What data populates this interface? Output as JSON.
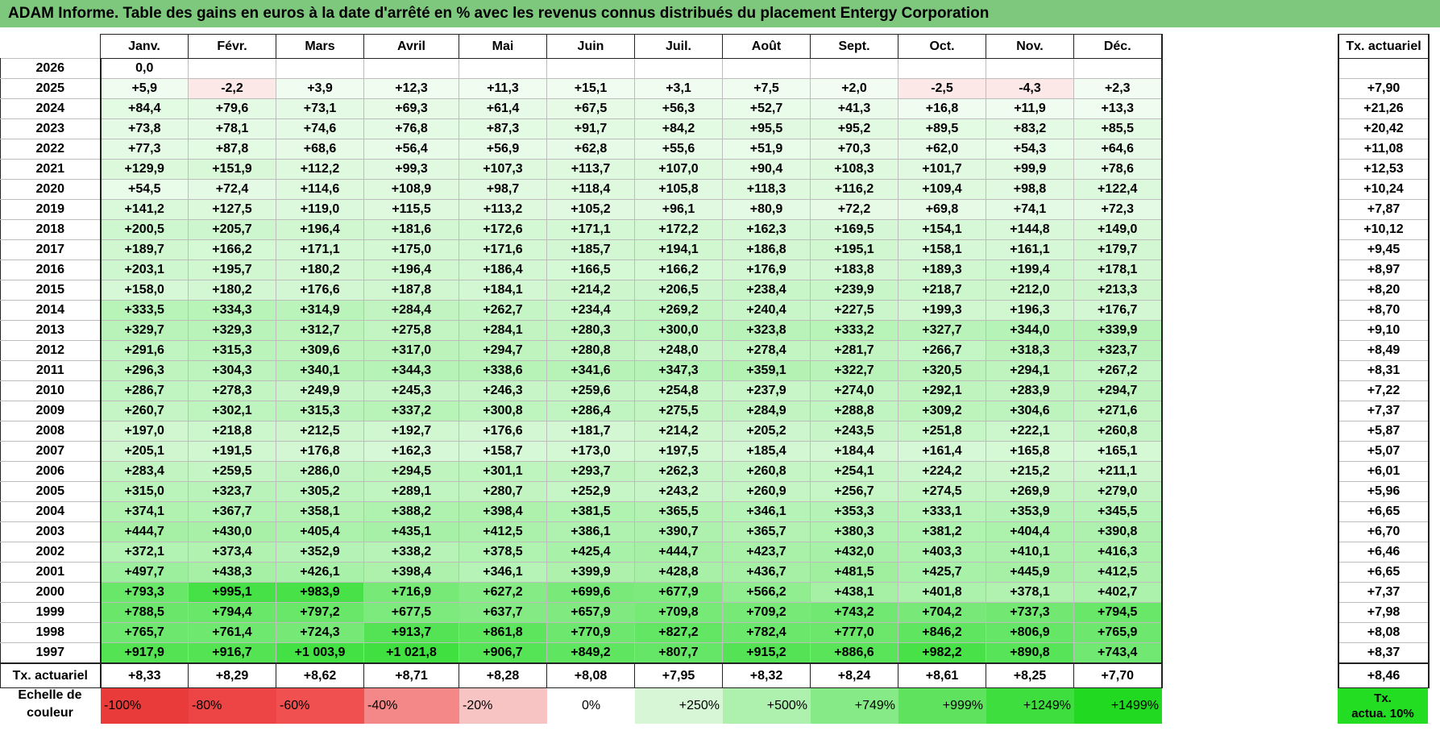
{
  "title": "ADAM Informe. Table des gains en euros à la date d'arrêté en % avec les revenus connus distribués du placement Entergy Corporation",
  "months": [
    "Janv.",
    "Févr.",
    "Mars",
    "Avril",
    "Mai",
    "Juin",
    "Juil.",
    "Août",
    "Sept.",
    "Oct.",
    "Nov.",
    "Déc."
  ],
  "tx_header": "Tx. actuariel",
  "rows": [
    {
      "year": "2026",
      "values": [
        "0,0",
        "",
        "",
        "",
        "",
        "",
        "",
        "",
        "",
        "",
        "",
        ""
      ],
      "tx": ""
    },
    {
      "year": "2025",
      "values": [
        "+5,9",
        "-2,2",
        "+3,9",
        "+12,3",
        "+11,3",
        "+15,1",
        "+3,1",
        "+7,5",
        "+2,0",
        "-2,5",
        "-4,3",
        "+2,3"
      ],
      "tx": "+7,90"
    },
    {
      "year": "2024",
      "values": [
        "+84,4",
        "+79,6",
        "+73,1",
        "+69,3",
        "+61,4",
        "+67,5",
        "+56,3",
        "+52,7",
        "+41,3",
        "+16,8",
        "+11,9",
        "+13,3"
      ],
      "tx": "+21,26"
    },
    {
      "year": "2023",
      "values": [
        "+73,8",
        "+78,1",
        "+74,6",
        "+76,8",
        "+87,3",
        "+91,7",
        "+84,2",
        "+95,5",
        "+95,2",
        "+89,5",
        "+83,2",
        "+85,5"
      ],
      "tx": "+20,42"
    },
    {
      "year": "2022",
      "values": [
        "+77,3",
        "+87,8",
        "+68,6",
        "+56,4",
        "+56,9",
        "+62,8",
        "+55,6",
        "+51,9",
        "+70,3",
        "+62,0",
        "+54,3",
        "+64,6"
      ],
      "tx": "+11,08"
    },
    {
      "year": "2021",
      "values": [
        "+129,9",
        "+151,9",
        "+112,2",
        "+99,3",
        "+107,3",
        "+113,7",
        "+107,0",
        "+90,4",
        "+108,3",
        "+101,7",
        "+99,9",
        "+78,6"
      ],
      "tx": "+12,53"
    },
    {
      "year": "2020",
      "values": [
        "+54,5",
        "+72,4",
        "+114,6",
        "+108,9",
        "+98,7",
        "+118,4",
        "+105,8",
        "+118,3",
        "+116,2",
        "+109,4",
        "+98,8",
        "+122,4"
      ],
      "tx": "+10,24"
    },
    {
      "year": "2019",
      "values": [
        "+141,2",
        "+127,5",
        "+119,0",
        "+115,5",
        "+113,2",
        "+105,2",
        "+96,1",
        "+80,9",
        "+72,2",
        "+69,8",
        "+74,1",
        "+72,3"
      ],
      "tx": "+7,87"
    },
    {
      "year": "2018",
      "values": [
        "+200,5",
        "+205,7",
        "+196,4",
        "+181,6",
        "+172,6",
        "+171,1",
        "+172,2",
        "+162,3",
        "+169,5",
        "+154,1",
        "+144,8",
        "+149,0"
      ],
      "tx": "+10,12"
    },
    {
      "year": "2017",
      "values": [
        "+189,7",
        "+166,2",
        "+171,1",
        "+175,0",
        "+171,6",
        "+185,7",
        "+194,1",
        "+186,8",
        "+195,1",
        "+158,1",
        "+161,1",
        "+179,7"
      ],
      "tx": "+9,45"
    },
    {
      "year": "2016",
      "values": [
        "+203,1",
        "+195,7",
        "+180,2",
        "+196,4",
        "+186,4",
        "+166,5",
        "+166,2",
        "+176,9",
        "+183,8",
        "+189,3",
        "+199,4",
        "+178,1"
      ],
      "tx": "+8,97"
    },
    {
      "year": "2015",
      "values": [
        "+158,0",
        "+180,2",
        "+176,6",
        "+187,8",
        "+184,1",
        "+214,2",
        "+206,5",
        "+238,4",
        "+239,9",
        "+218,7",
        "+212,0",
        "+213,3"
      ],
      "tx": "+8,20"
    },
    {
      "year": "2014",
      "values": [
        "+333,5",
        "+334,3",
        "+314,9",
        "+284,4",
        "+262,7",
        "+234,4",
        "+269,2",
        "+240,4",
        "+227,5",
        "+199,3",
        "+196,3",
        "+176,7"
      ],
      "tx": "+8,70"
    },
    {
      "year": "2013",
      "values": [
        "+329,7",
        "+329,3",
        "+312,7",
        "+275,8",
        "+284,1",
        "+280,3",
        "+300,0",
        "+323,8",
        "+333,2",
        "+327,7",
        "+344,0",
        "+339,9"
      ],
      "tx": "+9,10"
    },
    {
      "year": "2012",
      "values": [
        "+291,6",
        "+315,3",
        "+309,6",
        "+317,0",
        "+294,7",
        "+280,8",
        "+248,0",
        "+278,4",
        "+281,7",
        "+266,7",
        "+318,3",
        "+323,7"
      ],
      "tx": "+8,49"
    },
    {
      "year": "2011",
      "values": [
        "+296,3",
        "+304,3",
        "+340,1",
        "+344,3",
        "+338,6",
        "+341,6",
        "+347,3",
        "+359,1",
        "+322,7",
        "+320,5",
        "+294,1",
        "+267,2"
      ],
      "tx": "+8,31"
    },
    {
      "year": "2010",
      "values": [
        "+286,7",
        "+278,3",
        "+249,9",
        "+245,3",
        "+246,3",
        "+259,6",
        "+254,8",
        "+237,9",
        "+274,0",
        "+292,1",
        "+283,9",
        "+294,7"
      ],
      "tx": "+7,22"
    },
    {
      "year": "2009",
      "values": [
        "+260,7",
        "+302,1",
        "+315,3",
        "+337,2",
        "+300,8",
        "+286,4",
        "+275,5",
        "+284,9",
        "+288,8",
        "+309,2",
        "+304,6",
        "+271,6"
      ],
      "tx": "+7,37"
    },
    {
      "year": "2008",
      "values": [
        "+197,0",
        "+218,8",
        "+212,5",
        "+192,7",
        "+176,6",
        "+181,7",
        "+214,2",
        "+205,2",
        "+243,5",
        "+251,8",
        "+222,1",
        "+260,8"
      ],
      "tx": "+5,87"
    },
    {
      "year": "2007",
      "values": [
        "+205,1",
        "+191,5",
        "+176,8",
        "+162,3",
        "+158,7",
        "+173,0",
        "+197,5",
        "+185,4",
        "+184,4",
        "+161,4",
        "+165,8",
        "+165,1"
      ],
      "tx": "+5,07"
    },
    {
      "year": "2006",
      "values": [
        "+283,4",
        "+259,5",
        "+286,0",
        "+294,5",
        "+301,1",
        "+293,7",
        "+262,3",
        "+260,8",
        "+254,1",
        "+224,2",
        "+215,2",
        "+211,1"
      ],
      "tx": "+6,01"
    },
    {
      "year": "2005",
      "values": [
        "+315,0",
        "+323,7",
        "+305,2",
        "+289,1",
        "+280,7",
        "+252,9",
        "+243,2",
        "+260,9",
        "+256,7",
        "+274,5",
        "+269,9",
        "+279,0"
      ],
      "tx": "+5,96"
    },
    {
      "year": "2004",
      "values": [
        "+374,1",
        "+367,7",
        "+358,1",
        "+388,2",
        "+398,4",
        "+381,5",
        "+365,5",
        "+346,1",
        "+353,3",
        "+333,1",
        "+353,9",
        "+345,5"
      ],
      "tx": "+6,65"
    },
    {
      "year": "2003",
      "values": [
        "+444,7",
        "+430,0",
        "+405,4",
        "+435,1",
        "+412,5",
        "+386,1",
        "+390,7",
        "+365,7",
        "+380,3",
        "+381,2",
        "+404,4",
        "+390,8"
      ],
      "tx": "+6,70"
    },
    {
      "year": "2002",
      "values": [
        "+372,1",
        "+373,4",
        "+352,9",
        "+338,2",
        "+378,5",
        "+425,4",
        "+444,7",
        "+423,7",
        "+432,0",
        "+403,3",
        "+410,1",
        "+416,3"
      ],
      "tx": "+6,46"
    },
    {
      "year": "2001",
      "values": [
        "+497,7",
        "+438,3",
        "+426,1",
        "+398,4",
        "+346,1",
        "+399,9",
        "+428,8",
        "+436,7",
        "+481,5",
        "+425,7",
        "+445,9",
        "+412,5"
      ],
      "tx": "+6,65"
    },
    {
      "year": "2000",
      "values": [
        "+793,3",
        "+995,1",
        "+983,9",
        "+716,9",
        "+627,2",
        "+699,6",
        "+677,9",
        "+566,2",
        "+438,1",
        "+401,8",
        "+378,1",
        "+402,7"
      ],
      "tx": "+7,37"
    },
    {
      "year": "1999",
      "values": [
        "+788,5",
        "+794,4",
        "+797,2",
        "+677,5",
        "+637,7",
        "+657,9",
        "+709,8",
        "+709,2",
        "+743,2",
        "+704,2",
        "+737,3",
        "+794,5"
      ],
      "tx": "+7,98"
    },
    {
      "year": "1998",
      "values": [
        "+765,7",
        "+761,4",
        "+724,3",
        "+913,7",
        "+861,8",
        "+770,9",
        "+827,2",
        "+782,4",
        "+777,0",
        "+846,2",
        "+806,9",
        "+765,9"
      ],
      "tx": "+8,08"
    },
    {
      "year": "1997",
      "values": [
        "+917,9",
        "+916,7",
        "+1 003,9",
        "+1 021,8",
        "+906,7",
        "+849,2",
        "+807,7",
        "+915,2",
        "+886,6",
        "+982,2",
        "+890,8",
        "+743,4"
      ],
      "tx": "+8,37"
    }
  ],
  "footer": {
    "label": "Tx. actuariel",
    "values": [
      "+8,33",
      "+8,29",
      "+8,62",
      "+8,71",
      "+8,28",
      "+8,08",
      "+7,95",
      "+8,32",
      "+8,24",
      "+8,61",
      "+8,25",
      "+7,70"
    ],
    "tx": "+8,46"
  },
  "scale": {
    "label_line1": "Echelle de",
    "label_line2": "couleur",
    "items": [
      {
        "label": "-100%",
        "color": "#ea3b3b",
        "kind": "neg"
      },
      {
        "label": "-80%",
        "color": "#ed4545",
        "kind": "neg"
      },
      {
        "label": "-60%",
        "color": "#f05050",
        "kind": "neg"
      },
      {
        "label": "-40%",
        "color": "#f48787",
        "kind": "neg"
      },
      {
        "label": "-20%",
        "color": "#f8c3c3",
        "kind": "neg"
      },
      {
        "label": "0%",
        "color": "#ffffff",
        "kind": "zero"
      },
      {
        "label": "+250%",
        "color": "#d6f6d6",
        "kind": "pos"
      },
      {
        "label": "+500%",
        "color": "#aef0ae",
        "kind": "pos"
      },
      {
        "label": "+749%",
        "color": "#86ea86",
        "kind": "pos"
      },
      {
        "label": "+999%",
        "color": "#5fe35f",
        "kind": "pos"
      },
      {
        "label": "+1249%",
        "color": "#3ede3e",
        "kind": "pos"
      },
      {
        "label": "+1499%",
        "color": "#22d922",
        "kind": "pos"
      }
    ],
    "tx_line1": "Tx.",
    "tx_line2": "actua. 10%",
    "tx_color": "#22dd22"
  },
  "colors": {
    "title_bar": "#7dc87d",
    "negative_cell": "#fde8e8"
  }
}
